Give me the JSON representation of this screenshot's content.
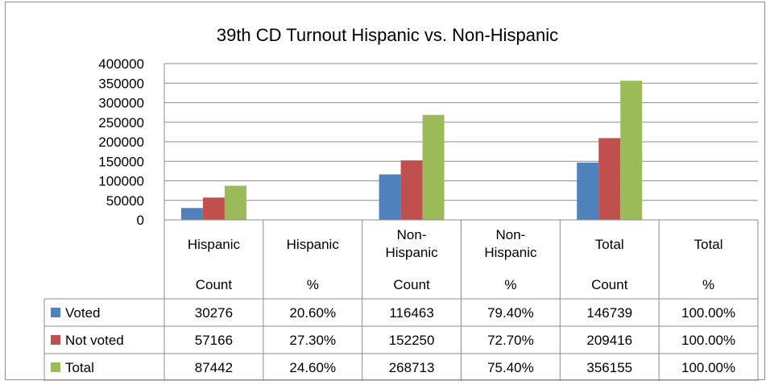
{
  "chart_data": {
    "type": "bar",
    "title": "39th CD Turnout Hispanic vs. Non-Hispanic",
    "xlabel": "",
    "ylabel": "",
    "ylim": [
      0,
      400000
    ],
    "yticks": [
      "400000",
      "350000",
      "300000",
      "250000",
      "200000",
      "150000",
      "100000",
      "50000",
      "0"
    ],
    "grid": true,
    "legend": "in data table",
    "categories": [
      [
        "Hispanic",
        "Count"
      ],
      [
        "Hispanic",
        "%"
      ],
      [
        "Non-",
        "Hispanic",
        "Count"
      ],
      [
        "Non-",
        "Hispanic",
        "%"
      ],
      [
        "Total",
        "Count"
      ],
      [
        "Total",
        "%"
      ]
    ],
    "series": [
      {
        "name": "Voted",
        "color": "#4f81bd",
        "values": [
          30276,
          0.206,
          116463,
          0.794,
          146739,
          1.0
        ],
        "labels": [
          "30276",
          "20.60%",
          "116463",
          "79.40%",
          "146739",
          "100.00%"
        ]
      },
      {
        "name": "Not voted",
        "color": "#c0504d",
        "values": [
          57166,
          0.273,
          152250,
          0.727,
          209416,
          1.0
        ],
        "labels": [
          "57166",
          "27.30%",
          "152250",
          "72.70%",
          "209416",
          "100.00%"
        ]
      },
      {
        "name": "Total",
        "color": "#9bbb59",
        "values": [
          87442,
          0.246,
          268713,
          0.754,
          356155,
          1.0
        ],
        "labels": [
          "87442",
          "24.60%",
          "268713",
          "75.40%",
          "356155",
          "100.00%"
        ]
      }
    ]
  }
}
